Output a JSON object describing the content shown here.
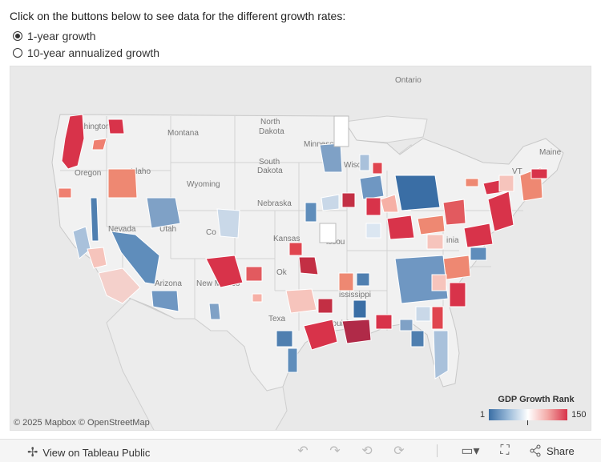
{
  "instructions": "Click on the buttons below to see data for the different growth rates:",
  "options": [
    {
      "label": "1-year growth",
      "selected": true
    },
    {
      "label": "10-year annualized growth",
      "selected": false
    }
  ],
  "map": {
    "labels": {
      "ontario": "Ontario",
      "washington": "Washington",
      "montana": "Montana",
      "north_dakota_1": "North",
      "north_dakota_2": "Dakota",
      "minnesota": "Minneso",
      "south_dakota_1": "South",
      "south_dakota_2": "Dakota",
      "wisconsin": "Wisc",
      "oregon": "Oregon",
      "idaho": "Idaho",
      "wyoming": "Wyoming",
      "vermont": "VT",
      "maine": "Maine",
      "nebraska": "Nebraska",
      "nevada": "Nevada",
      "utah": "Utah",
      "colorado": "Co",
      "kansas": "Kansas",
      "missouri": "issou",
      "virginia": "inia",
      "arizona": "Arizona",
      "new_mexico": "New Mexico",
      "oklahoma": "Ok",
      "texas": "Texa",
      "mississippi": "ississippi",
      "louisiana": "Louisi"
    },
    "attribution": "© 2025 Mapbox  © OpenStreetMap",
    "colors": {
      "low_rank": "#3a6ea5",
      "mid_rank": "#ffffff",
      "high_rank": "#d8334a"
    }
  },
  "legend": {
    "title": "GDP Growth Rank",
    "min": "1",
    "max": "150"
  },
  "toolbar": {
    "view_label": "View on Tableau Public",
    "share_label": "Share",
    "icons": [
      "undo-icon",
      "redo-icon",
      "revert-icon",
      "refresh-icon",
      "download-icon",
      "fullscreen-icon",
      "share-icon"
    ]
  }
}
